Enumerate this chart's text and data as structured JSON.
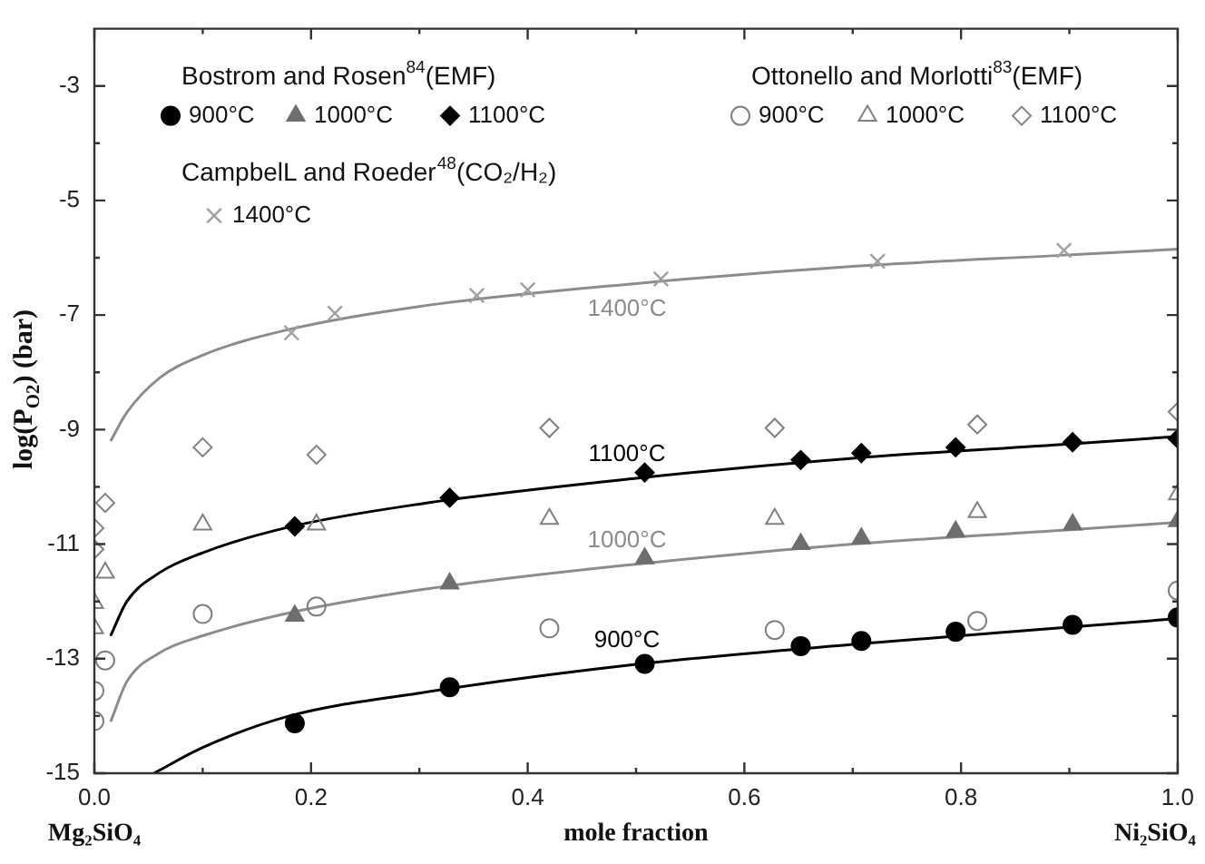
{
  "chart_data": {
    "type": "scatter",
    "xlabel": "mole fraction",
    "ylabel": "log(P$_{O2}$) (bar)",
    "xlim": [
      0,
      1
    ],
    "ylim": [
      -15,
      -2
    ],
    "xticks": [
      {
        "value": 0,
        "label": "0.0"
      },
      {
        "value": 0.1,
        "label": null
      },
      0.2,
      {
        "value": 0.3,
        "label": null
      },
      0.4,
      {
        "value": 0.5,
        "label": null
      },
      0.6,
      {
        "value": 0.7,
        "label": null
      },
      0.8,
      {
        "value": 0.9,
        "label": null
      },
      {
        "value": 1,
        "label": "1.0"
      }
    ],
    "yticks": [
      -15,
      {
        "value": -14,
        "label": null
      },
      -13,
      {
        "value": -12,
        "label": null
      },
      -11,
      {
        "value": -10,
        "label": null
      },
      -9,
      {
        "value": -8,
        "label": null
      },
      -7,
      {
        "value": -6,
        "label": null
      },
      -5,
      {
        "value": -4,
        "label": null
      },
      -3
    ],
    "legend": "top",
    "grid": false,
    "annotations": [
      "Bostrom and Rosen$^{84}$(EMF)",
      "Ottonello and Morlotti$^{83}$(EMF)",
      "CampbelL and Roeder$^{48}$(CO₂/H₂)",
      "Mg₂SiO₄",
      "Ni₂SiO₄",
      "1400°C",
      "1100°C",
      "1000°C",
      "900°C"
    ],
    "series": [
      {
        "name": "900°C",
        "type": "scatter",
        "marker": "circle",
        "color": "#000000",
        "x": [
          0.185,
          0.328,
          0.508,
          0.652,
          0.708,
          0.795,
          0.903,
          1.0
        ],
        "values": [
          -14.13,
          -13.5,
          -13.09,
          -12.78,
          -12.69,
          -12.53,
          -12.41,
          -12.28
        ]
      },
      {
        "name": "1000°C",
        "type": "scatter",
        "marker": "triangle",
        "color": "#6e6e6e",
        "x": [
          0.185,
          0.328,
          0.508,
          0.652,
          0.708,
          0.795,
          0.903,
          1.0
        ],
        "values": [
          -12.25,
          -11.69,
          -11.25,
          -11.0,
          -10.9,
          -10.78,
          -10.66,
          -10.6
        ]
      },
      {
        "name": "1100°C",
        "type": "scatter",
        "marker": "diamond",
        "color": "#000000",
        "x": [
          0.185,
          0.328,
          0.508,
          0.652,
          0.708,
          0.795,
          0.903,
          1.0
        ],
        "values": [
          -10.69,
          -10.19,
          -9.75,
          -9.53,
          -9.41,
          -9.31,
          -9.22,
          -9.16
        ]
      },
      {
        "name": "900°C",
        "type": "scatter",
        "marker": "circle-open",
        "color": "#808080",
        "x": [
          0.0,
          0.0,
          0.01,
          0.1,
          0.205,
          0.42,
          0.628,
          0.815,
          1.0
        ],
        "values": [
          -14.09,
          -13.56,
          -13.03,
          -12.22,
          -12.09,
          -12.47,
          -12.5,
          -12.34,
          -11.81
        ]
      },
      {
        "name": "1000°C",
        "type": "scatter",
        "marker": "triangle-open",
        "color": "#808080",
        "x": [
          0.0,
          0.0,
          0.01,
          0.1,
          0.205,
          0.42,
          0.628,
          0.815,
          1.0
        ],
        "values": [
          -12.47,
          -12.03,
          -11.5,
          -10.66,
          -10.66,
          -10.56,
          -10.56,
          -10.44,
          -10.13
        ]
      },
      {
        "name": "1100°C",
        "type": "scatter",
        "marker": "diamond-open",
        "color": "#808080",
        "x": [
          0.0,
          0.0,
          0.01,
          0.1,
          0.205,
          0.42,
          0.628,
          0.815,
          1.0
        ],
        "values": [
          -11.09,
          -10.72,
          -10.28,
          -9.31,
          -9.44,
          -8.97,
          -8.97,
          -8.91,
          -8.69
        ]
      },
      {
        "name": "1400°C",
        "type": "scatter",
        "marker": "cross",
        "color": "#a0a0a0",
        "x": [
          0.182,
          0.222,
          0.353,
          0.4,
          0.523,
          0.723,
          0.895
        ],
        "values": [
          -7.31,
          -6.97,
          -6.66,
          -6.56,
          -6.37,
          -6.06,
          -5.87
        ]
      },
      {
        "type": "line",
        "color": "#8c8c8c",
        "x": [
          0.015,
          0.03,
          0.06,
          0.1,
          0.18,
          0.3,
          0.5,
          0.7,
          0.9,
          1.0
        ],
        "values": [
          -9.2,
          -8.7,
          -8.1,
          -7.7,
          -7.25,
          -6.85,
          -6.45,
          -6.15,
          -5.95,
          -5.85
        ]
      },
      {
        "type": "line",
        "color": "#000000",
        "x": [
          0.015,
          0.03,
          0.06,
          0.1,
          0.18,
          0.3,
          0.5,
          0.7,
          0.9,
          1.0
        ],
        "values": [
          -12.6,
          -12.0,
          -11.5,
          -11.15,
          -10.7,
          -10.3,
          -9.85,
          -9.5,
          -9.25,
          -9.12
        ]
      },
      {
        "type": "line",
        "color": "#8c8c8c",
        "x": [
          0.015,
          0.03,
          0.06,
          0.1,
          0.18,
          0.3,
          0.5,
          0.7,
          0.9,
          1.0
        ],
        "values": [
          -14.1,
          -13.4,
          -12.9,
          -12.6,
          -12.2,
          -11.8,
          -11.35,
          -11.0,
          -10.75,
          -10.62
        ]
      },
      {
        "type": "line",
        "color": "#000000",
        "x": [
          0.055,
          0.1,
          0.18,
          0.3,
          0.5,
          0.7,
          0.9,
          1.0
        ],
        "values": [
          -15.0,
          -14.55,
          -14.0,
          -13.6,
          -13.1,
          -12.75,
          -12.45,
          -12.3
        ]
      }
    ]
  }
}
